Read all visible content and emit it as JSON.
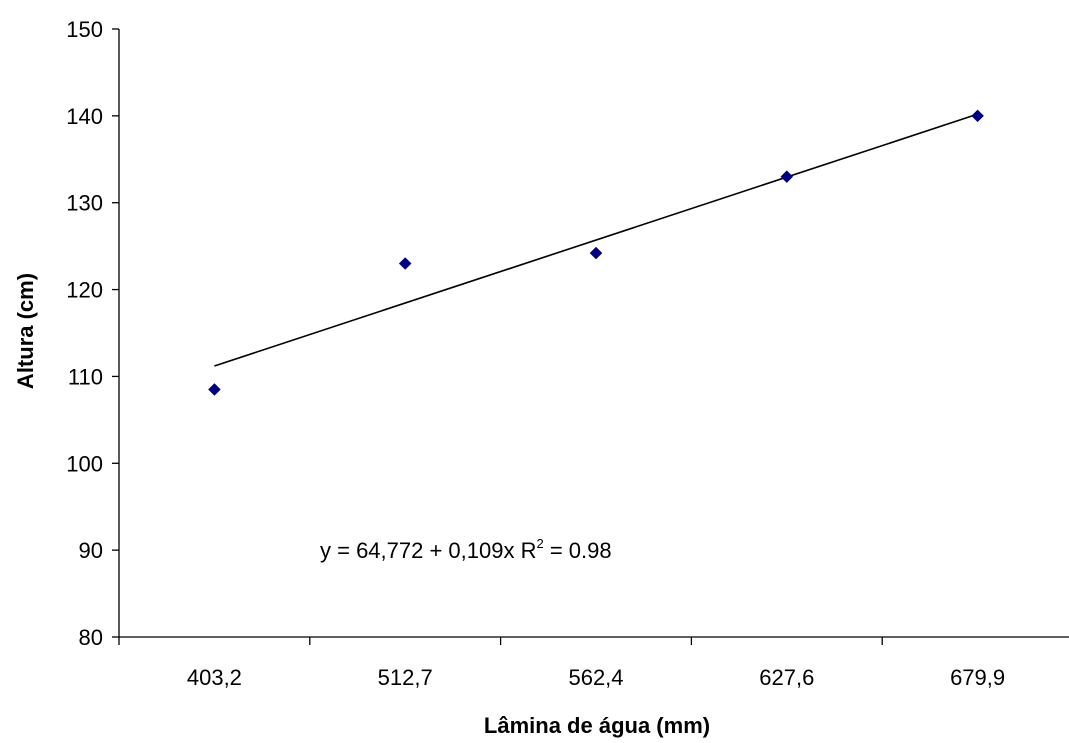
{
  "chart_data": {
    "type": "scatter",
    "title": "",
    "xlabel": "Lâmina de água (mm)",
    "ylabel": "Altura (cm)",
    "x_axis_type": "category",
    "categories": [
      "403,2",
      "512,7",
      "562,4",
      "627,6",
      "679,9"
    ],
    "ylim": [
      80,
      150
    ],
    "yticks": [
      80,
      90,
      100,
      110,
      120,
      130,
      140,
      150
    ],
    "grid": false,
    "legend": "none",
    "series": [
      {
        "marker": "diamond",
        "color": "#000080",
        "values": [
          108.5,
          123,
          124.2,
          133,
          140
        ]
      }
    ],
    "trendline": {
      "type": "linear",
      "color": "#000000",
      "start": 111.2,
      "end": 140.2
    },
    "annotation": {
      "equation_text": "y = 64,772 + 0,109x  R",
      "r2_superscript": "2",
      "r2_value_text": " = 0.98"
    }
  }
}
